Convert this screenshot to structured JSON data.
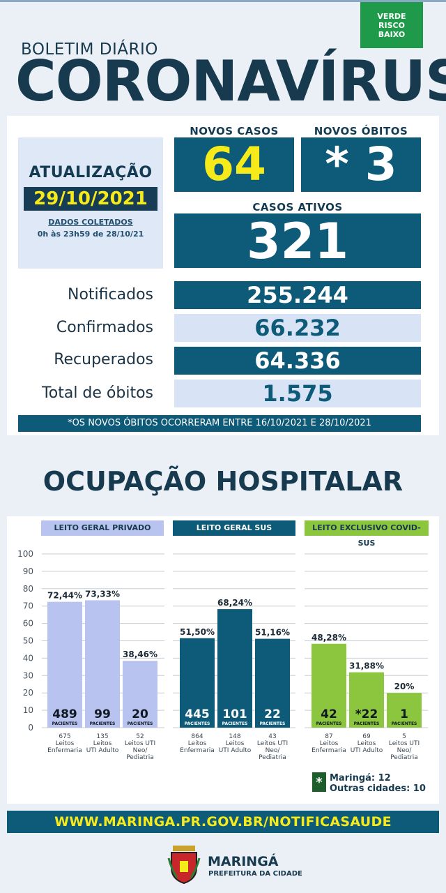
{
  "header": {
    "risk_badge": [
      "VERDE",
      "RISCO",
      "BAIXO"
    ],
    "subtitle": "BOLETIM DIÁRIO",
    "title": "CORONAVÍRUS"
  },
  "update": {
    "label": "ATUALIZAÇÃO",
    "date": "29/10/2021",
    "collected_label": "DADOS COLETADOS",
    "collected_range": "0h às 23h59 de 28/10/21"
  },
  "highlights": {
    "new_cases_label": "NOVOS CASOS",
    "new_cases": "64",
    "new_deaths_label": "NOVOS ÓBITOS",
    "new_deaths": "* 3",
    "active_label": "CASOS ATIVOS",
    "active": "321"
  },
  "stats": [
    {
      "label": "Notificados",
      "value": "255.244"
    },
    {
      "label": "Confirmados",
      "value": "66.232"
    },
    {
      "label": "Recuperados",
      "value": "64.336"
    },
    {
      "label": "Total de óbitos",
      "value": "1.575"
    }
  ],
  "note": "*OS NOVOS ÓBITOS OCORRERAM ENTRE 16/10/2021 E 28/10/2021",
  "occupancy_title": "OCUPAÇÃO HOSPITALAR",
  "colors": {
    "private": "#b9c3ef",
    "sus": "#0d5a79",
    "covid": "#8cc63e"
  },
  "chart_data": {
    "type": "bar",
    "ylim": [
      0,
      100
    ],
    "yticks": [
      "100",
      "90",
      "80",
      "70",
      "60",
      "50",
      "40",
      "30",
      "20",
      "10",
      "0"
    ],
    "patients_label": "PACIENTES",
    "groups": [
      {
        "name": "LEITO GERAL PRIVADO",
        "bars": [
          {
            "pct": 72.44,
            "pct_label": "72,44%",
            "patients": "489",
            "capacity": [
              "675",
              "Leitos",
              "Enfermaria"
            ]
          },
          {
            "pct": 73.33,
            "pct_label": "73,33%",
            "patients": "99",
            "capacity": [
              "135",
              "Leitos",
              "UTI Adulto"
            ]
          },
          {
            "pct": 38.46,
            "pct_label": "38,46%",
            "patients": "20",
            "capacity": [
              "52",
              "Leitos UTI",
              "Neo/",
              "Pediatria"
            ]
          }
        ]
      },
      {
        "name": "LEITO GERAL SUS",
        "bars": [
          {
            "pct": 51.5,
            "pct_label": "51,50%",
            "patients": "445",
            "capacity": [
              "864",
              "Leitos",
              "Enfermaria"
            ]
          },
          {
            "pct": 68.24,
            "pct_label": "68,24%",
            "patients": "101",
            "capacity": [
              "148",
              "Leitos",
              "UTI Adulto"
            ]
          },
          {
            "pct": 51.16,
            "pct_label": "51,16%",
            "patients": "22",
            "capacity": [
              "43",
              "Leitos UTI",
              "Neo/",
              "Pediatria"
            ]
          }
        ]
      },
      {
        "name": "LEITO EXCLUSIVO COVID-SUS",
        "bars": [
          {
            "pct": 48.28,
            "pct_label": "48,28%",
            "patients": "42",
            "capacity": [
              "87",
              "Leitos",
              "Enfermaria"
            ]
          },
          {
            "pct": 31.88,
            "pct_label": "31,88%",
            "patients": "*22",
            "capacity": [
              "69",
              "Leitos",
              "UTI Adulto"
            ]
          },
          {
            "pct": 20,
            "pct_label": "20%",
            "patients": "1",
            "capacity": [
              "5",
              "Leitos UTI",
              "Neo/",
              "Pediatria"
            ]
          }
        ]
      }
    ]
  },
  "legend": {
    "symbol": "*",
    "line1": "Maringá: 12",
    "line2": "Outras cidades: 10"
  },
  "footer": "WWW.MARINGA.PR.GOV.BR/NOTIFICASAUDE",
  "logo": {
    "name": "MARINGÁ",
    "sub": "PREFEITURA DA CIDADE"
  }
}
